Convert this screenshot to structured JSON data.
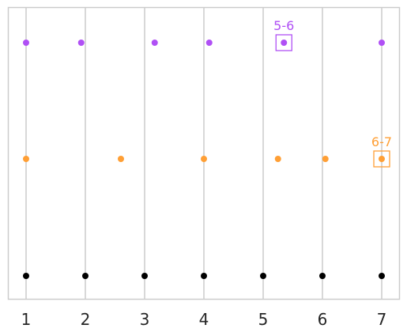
{
  "chart_data": {
    "type": "scatter",
    "title": "",
    "xlabel": "",
    "ylabel": "",
    "xlim": [
      0.7,
      7.3
    ],
    "x_ticks": [
      "1",
      "2",
      "3",
      "4",
      "5",
      "6",
      "7"
    ],
    "grid": "vertical",
    "series": [
      {
        "color": "#000000",
        "x": [
          1,
          2,
          3,
          4,
          5,
          6,
          7
        ]
      },
      {
        "color": "#ff9f35",
        "x": [
          1,
          2.6,
          4,
          5.25,
          6.05,
          7
        ]
      },
      {
        "color": "#b050f5",
        "x": [
          1,
          1.93,
          3.17,
          4.09,
          5.35,
          7
        ]
      }
    ],
    "annotations": [
      {
        "label": "5-6",
        "series": 2,
        "x": 5.35,
        "color": "#b050f5"
      },
      {
        "label": "6-7",
        "series": 1,
        "x": 7,
        "color": "#ff9f35"
      }
    ]
  }
}
